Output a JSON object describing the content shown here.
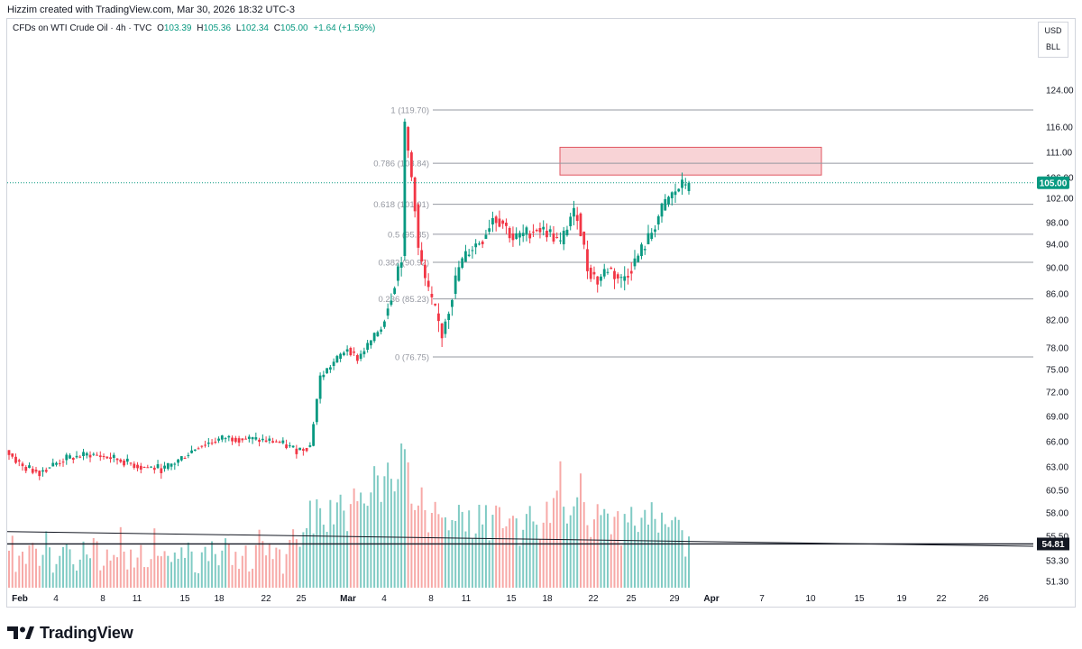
{
  "header": {
    "attribution": "Hizzim created with TradingView.com, Mar 30, 2026 18:32 UTC-3"
  },
  "legend": {
    "symbol": "CFDs on WTI Crude Oil · 4h · TVC",
    "open_label": "O",
    "open": "103.39",
    "high_label": "H",
    "high": "105.36",
    "low_label": "L",
    "low": "102.34",
    "close_label": "C",
    "close": "105.00",
    "change": "+1.64 (+1.59%)"
  },
  "unit_box": {
    "currency": "USD",
    "unit": "BLL"
  },
  "footer": {
    "brand": "TradingView"
  },
  "colors": {
    "up": "#089981",
    "down": "#f23645",
    "volume_up": "#80cbc4",
    "volume_down": "#f7a9a7",
    "fib_line": "#9598a1",
    "zone_fill": "#f8d3d6",
    "zone_border": "#e05560",
    "price_tag": "#089981"
  },
  "chart_data": {
    "type": "candlestick",
    "timeframe": "4h",
    "x_ticks": [
      "Feb",
      "4",
      "8",
      "11",
      "15",
      "18",
      "22",
      "25",
      "Mar",
      "4",
      "8",
      "11",
      "15",
      "18",
      "22",
      "25",
      "29",
      "Apr",
      "7",
      "10",
      "15",
      "19",
      "22",
      "26"
    ],
    "y_ticks": [
      "124.00",
      "116.00",
      "111.00",
      "106.00",
      "102.00",
      "98.00",
      "94.00",
      "90.00",
      "86.00",
      "82.00",
      "78.00",
      "75.00",
      "72.00",
      "69.00",
      "66.00",
      "63.00",
      "60.50",
      "58.00",
      "55.50",
      "53.30",
      "51.30"
    ],
    "current_price": "105.00",
    "horizontal_line_price": "54.81",
    "fibonacci": [
      {
        "ratio": "1",
        "price": 119.7,
        "label": "1 (119.70)"
      },
      {
        "ratio": "0.786",
        "price": 108.84,
        "label": "0.786 (108.84)"
      },
      {
        "ratio": "0.618",
        "price": 101.01,
        "label": "0.618 (101.01)"
      },
      {
        "ratio": "0.5",
        "price": 95.85,
        "label": "0.5 (95.85)"
      },
      {
        "ratio": "0.382",
        "price": 90.92,
        "label": "0.382 (90.92)"
      },
      {
        "ratio": "0.236",
        "price": 85.23,
        "label": "0.236 (85.23)"
      },
      {
        "ratio": "0",
        "price": 76.75,
        "label": "0 (76.75)"
      }
    ],
    "resistance_zone": {
      "from": 106.5,
      "to": 112.0
    },
    "trendline": {
      "start_price": 56.0,
      "end_price": 54.6
    },
    "price_path": [
      [
        0,
        65
      ],
      [
        5,
        63
      ],
      [
        10,
        62.5
      ],
      [
        18,
        64
      ],
      [
        25,
        64.5
      ],
      [
        32,
        64
      ],
      [
        40,
        63
      ],
      [
        47,
        62.8
      ],
      [
        50,
        63.5
      ],
      [
        57,
        65.5
      ],
      [
        65,
        66.5
      ],
      [
        72,
        66.3
      ],
      [
        80,
        66
      ],
      [
        86,
        65
      ],
      [
        90,
        65.5
      ],
      [
        93,
        74
      ],
      [
        97,
        76
      ],
      [
        101,
        78
      ],
      [
        104,
        76.5
      ],
      [
        108,
        79
      ],
      [
        111,
        81
      ],
      [
        114,
        86
      ],
      [
        117,
        92
      ],
      [
        118,
        116
      ],
      [
        120,
        106
      ],
      [
        121,
        101
      ],
      [
        122,
        93
      ],
      [
        124,
        88
      ],
      [
        125,
        86
      ],
      [
        127,
        83
      ],
      [
        129,
        80
      ],
      [
        131,
        84
      ],
      [
        134,
        90
      ],
      [
        137,
        93
      ],
      [
        141,
        95
      ],
      [
        144,
        99
      ],
      [
        147,
        98
      ],
      [
        150,
        95
      ],
      [
        154,
        96
      ],
      [
        157,
        97
      ],
      [
        161,
        96
      ],
      [
        164,
        94
      ],
      [
        167,
        99
      ],
      [
        169,
        99.5
      ],
      [
        172,
        90
      ],
      [
        175,
        88
      ],
      [
        178,
        90
      ],
      [
        182,
        88
      ],
      [
        186,
        91
      ],
      [
        190,
        95
      ],
      [
        193,
        99
      ],
      [
        196,
        102
      ],
      [
        199,
        104
      ],
      [
        201,
        105
      ]
    ],
    "volume_profile": [
      2,
      3,
      1,
      2,
      2,
      1,
      3,
      2,
      2,
      1,
      2,
      3,
      2,
      1,
      1,
      2,
      2,
      3,
      2,
      1,
      1,
      2,
      2,
      1,
      2,
      3,
      2,
      1,
      1,
      2,
      1,
      2,
      2,
      3,
      2,
      1,
      2,
      1,
      2,
      2,
      1,
      1,
      2,
      3,
      2,
      1,
      2,
      2,
      1,
      2,
      1,
      2,
      2,
      3,
      2,
      1,
      1,
      2,
      2,
      1,
      2,
      2,
      1,
      2,
      3,
      2,
      1,
      2,
      1,
      2,
      2,
      1,
      1,
      2,
      3,
      2,
      1,
      2,
      1,
      2,
      2,
      1,
      2,
      3,
      4,
      3,
      2,
      3,
      4,
      5,
      4,
      6,
      5,
      4,
      4,
      5,
      4,
      5,
      6,
      5,
      4,
      5,
      6,
      6,
      7,
      6,
      5,
      6,
      8,
      7,
      6,
      7,
      9,
      8,
      7,
      8,
      10,
      9,
      8,
      6,
      5,
      6,
      7,
      5,
      4,
      5,
      6,
      5,
      4,
      5,
      4,
      5,
      4,
      6,
      5,
      4,
      5,
      3,
      4,
      5,
      4,
      5,
      3,
      4,
      5,
      5,
      4,
      4,
      5,
      4,
      5,
      3,
      4,
      5,
      6,
      4,
      4,
      3,
      4,
      5,
      4,
      6,
      7,
      8,
      5,
      4,
      4,
      5,
      6,
      7,
      5,
      4,
      3,
      4,
      5,
      4,
      5,
      4,
      3,
      4,
      5,
      3,
      4,
      4,
      5,
      4,
      3,
      4,
      5,
      4,
      5,
      4,
      4,
      5,
      4,
      3,
      4,
      5,
      4,
      4
    ]
  }
}
